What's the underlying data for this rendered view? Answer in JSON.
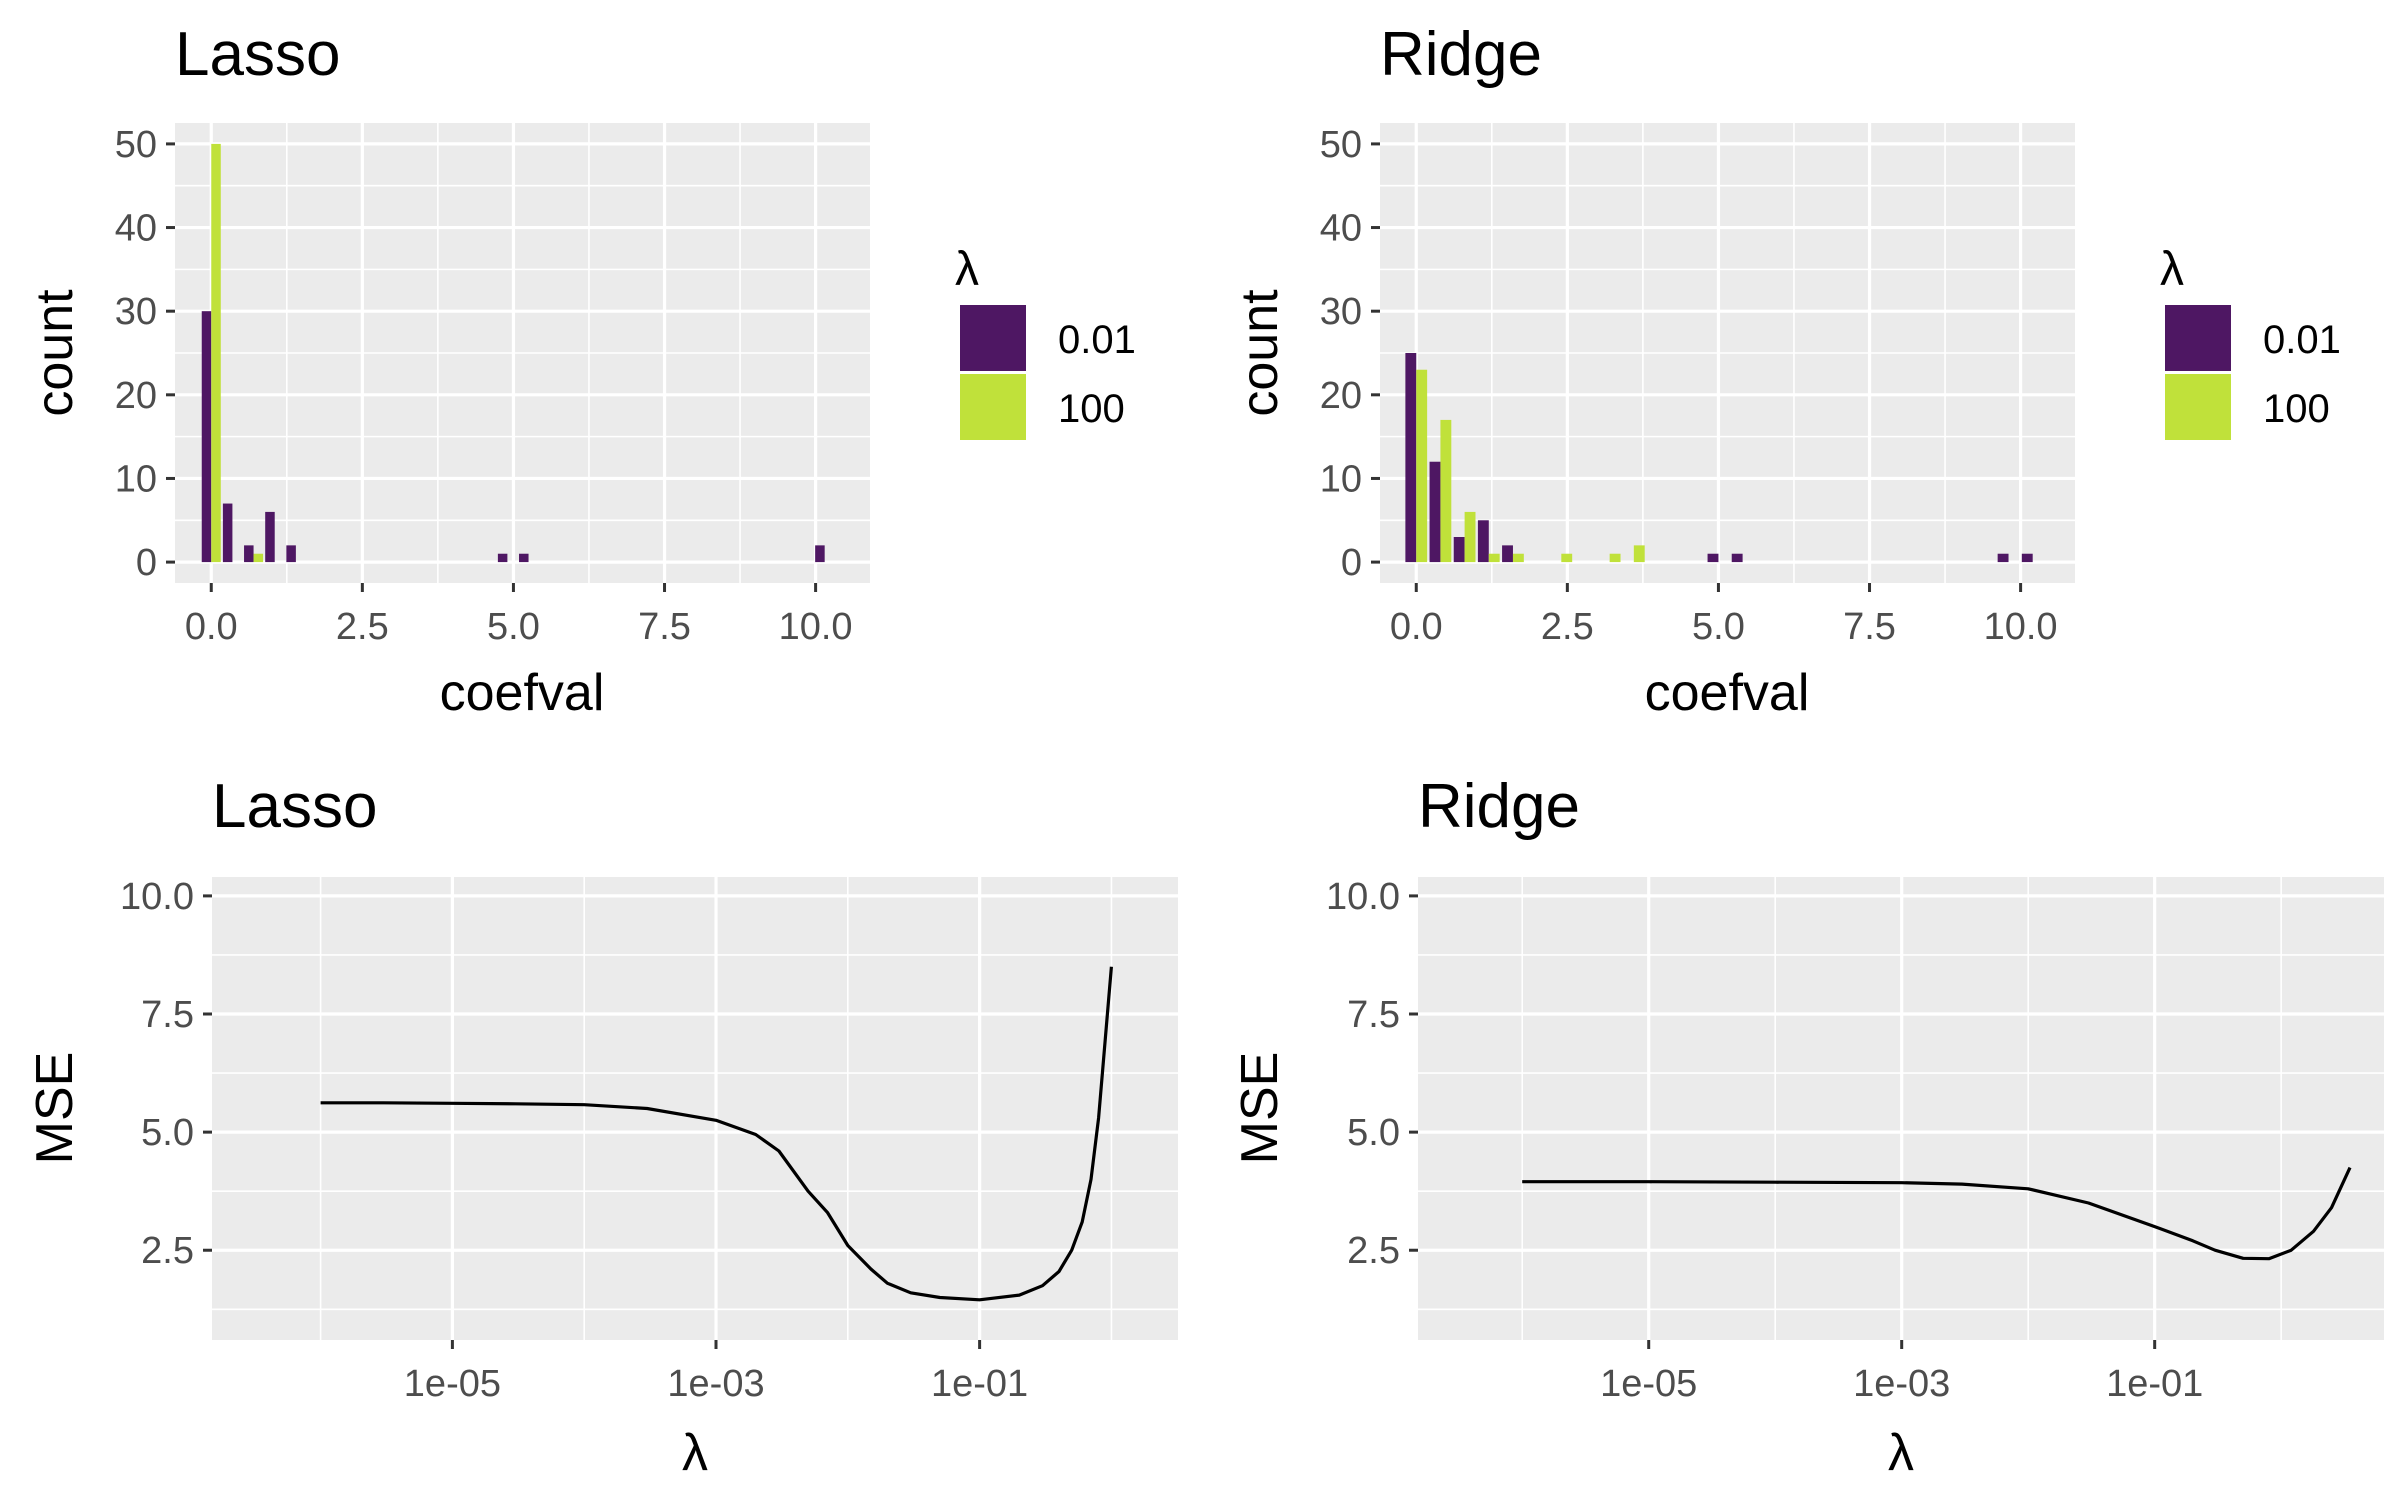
{
  "chart_data": [
    {
      "type": "bar",
      "title": "Lasso",
      "xlabel": "coefval",
      "ylabel": "count",
      "xlim": [
        -0.6,
        10.9
      ],
      "ylim": [
        -2.5,
        52.5
      ],
      "x_ticks": [
        "0.0",
        "2.5",
        "5.0",
        "7.5",
        "10.0"
      ],
      "y_ticks": [
        "0",
        "10",
        "20",
        "30",
        "40",
        "50"
      ],
      "bin_width": 0.35,
      "legend": {
        "title": "λ",
        "entries": [
          "0.01",
          "100"
        ],
        "colors": [
          "#4e1763",
          "#c0e13a"
        ]
      },
      "series": [
        {
          "name": "0.01",
          "color": "#4e1763",
          "x": [
            0.0,
            0.35,
            0.7,
            1.05,
            1.4,
            4.9,
            5.25,
            10.15
          ],
          "values": [
            30,
            7,
            2,
            6,
            2,
            1,
            1,
            2
          ]
        },
        {
          "name": "100",
          "color": "#c0e13a",
          "x": [
            0.0,
            0.7
          ],
          "values": [
            50,
            1
          ]
        }
      ]
    },
    {
      "type": "bar",
      "title": "Ridge",
      "xlabel": "coefval",
      "ylabel": "count",
      "xlim": [
        -0.6,
        10.9
      ],
      "ylim": [
        -2.5,
        52.5
      ],
      "x_ticks": [
        "0.0",
        "2.5",
        "5.0",
        "7.5",
        "10.0"
      ],
      "y_ticks": [
        "0",
        "10",
        "20",
        "30",
        "40",
        "50"
      ],
      "bin_width": 0.4,
      "legend": {
        "title": "λ",
        "entries": [
          "0.01",
          "100"
        ],
        "colors": [
          "#4e1763",
          "#c0e13a"
        ]
      },
      "series": [
        {
          "name": "0.01",
          "color": "#4e1763",
          "x": [
            0.0,
            0.4,
            0.8,
            1.2,
            1.6,
            5.0,
            5.4,
            9.8,
            10.2
          ],
          "values": [
            25,
            12,
            3,
            5,
            2,
            1,
            1,
            1,
            1
          ]
        },
        {
          "name": "100",
          "color": "#c0e13a",
          "x": [
            0.0,
            0.4,
            0.8,
            1.2,
            1.6,
            2.4,
            3.2,
            3.6
          ],
          "values": [
            23,
            17,
            6,
            1,
            1,
            1,
            1,
            2
          ]
        }
      ]
    },
    {
      "type": "line",
      "title": "Lasso",
      "xlabel": "λ",
      "ylabel": "MSE",
      "x_scale": "log10",
      "xlim": [
        1.5e-07,
        3.2
      ],
      "ylim": [
        0.6,
        10.4
      ],
      "x_ticks": [
        "1e-05",
        "1e-03",
        "1e-01"
      ],
      "y_ticks": [
        "2.5",
        "5.0",
        "7.5",
        "10.0"
      ],
      "series": [
        {
          "color": "#000000",
          "x": [
            1e-06,
            3e-06,
            1e-05,
            3e-05,
            0.0001,
            0.0003,
            0.001,
            0.002,
            0.003,
            0.005,
            0.007,
            0.01,
            0.015,
            0.02,
            0.03,
            0.05,
            0.1,
            0.2,
            0.3,
            0.4,
            0.5,
            0.6,
            0.7,
            0.8,
            0.9,
            1.0
          ],
          "values": [
            5.62,
            5.62,
            5.61,
            5.6,
            5.58,
            5.5,
            5.25,
            4.95,
            4.6,
            3.75,
            3.3,
            2.6,
            2.1,
            1.8,
            1.6,
            1.5,
            1.45,
            1.55,
            1.75,
            2.05,
            2.5,
            3.1,
            4.0,
            5.3,
            7.0,
            8.5
          ]
        }
      ]
    },
    {
      "type": "line",
      "title": "Ridge",
      "xlabel": "λ",
      "ylabel": "MSE",
      "x_scale": "log10",
      "xlim": [
        1.5e-07,
        6.5
      ],
      "ylim": [
        0.6,
        10.4
      ],
      "x_ticks": [
        "1e-05",
        "1e-03",
        "1e-01"
      ],
      "y_ticks": [
        "2.5",
        "5.0",
        "7.5",
        "10.0"
      ],
      "series": [
        {
          "color": "#000000",
          "x": [
            1e-06,
            1e-05,
            0.0001,
            0.001,
            0.003,
            0.01,
            0.03,
            0.1,
            0.2,
            0.3,
            0.5,
            0.8,
            1.2,
            1.8,
            2.5,
            3.5
          ],
          "values": [
            3.95,
            3.95,
            3.94,
            3.93,
            3.9,
            3.8,
            3.5,
            3.0,
            2.7,
            2.5,
            2.33,
            2.32,
            2.5,
            2.9,
            3.4,
            4.25
          ]
        }
      ]
    }
  ]
}
